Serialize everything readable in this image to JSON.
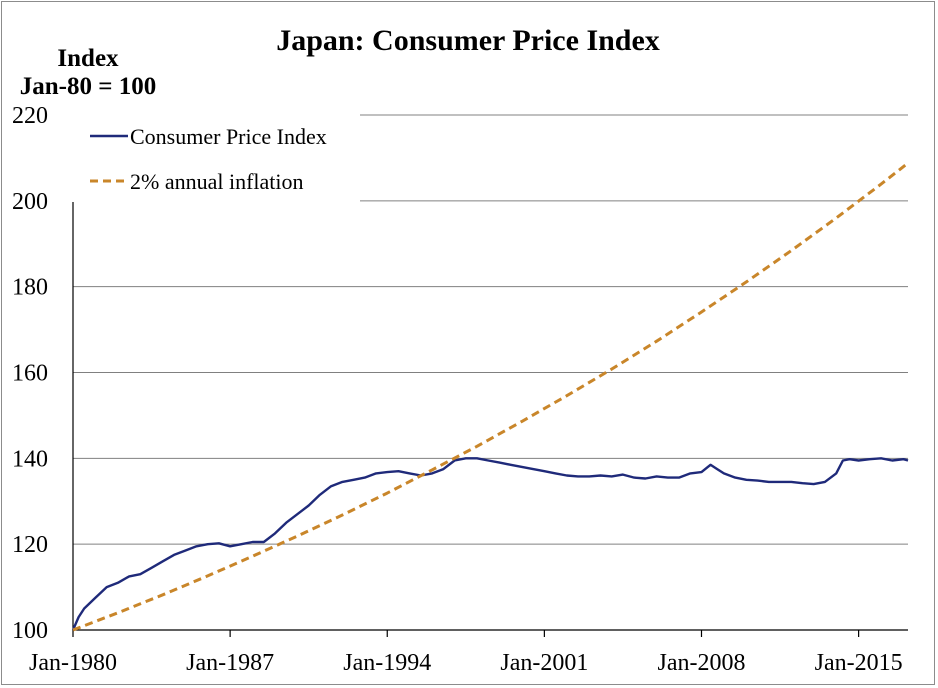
{
  "chart_data": {
    "type": "line",
    "title": "Japan: Consumer Price Index",
    "ylabel_line1": "Index",
    "ylabel_line2": "Jan-80 = 100",
    "xlabel": "",
    "ylim": [
      100,
      220
    ],
    "yticks": [
      100,
      120,
      140,
      160,
      180,
      200,
      220
    ],
    "xlim": [
      1980.0,
      2017.2
    ],
    "xticks": [
      {
        "x": 1980,
        "label": "Jan-1980"
      },
      {
        "x": 1987,
        "label": "Jan-1987"
      },
      {
        "x": 1994,
        "label": "Jan-1994"
      },
      {
        "x": 2001,
        "label": "Jan-2001"
      },
      {
        "x": 2008,
        "label": "Jan-2008"
      },
      {
        "x": 2015,
        "label": "Jan-2015"
      }
    ],
    "grid": true,
    "legend_position": "top-left",
    "series": [
      {
        "name": "Consumer Price Index",
        "color": "#1f2a7a",
        "style": "solid",
        "x": [
          1980.0,
          1980.25,
          1980.5,
          1981.0,
          1981.5,
          1982.0,
          1982.5,
          1983.0,
          1983.5,
          1984.0,
          1984.5,
          1985.0,
          1985.5,
          1986.0,
          1986.5,
          1987.0,
          1987.5,
          1988.0,
          1988.5,
          1989.0,
          1989.5,
          1990.0,
          1990.5,
          1991.0,
          1991.5,
          1992.0,
          1992.5,
          1993.0,
          1993.5,
          1994.0,
          1994.5,
          1995.0,
          1995.5,
          1996.0,
          1996.5,
          1997.0,
          1997.5,
          1998.0,
          1998.5,
          1999.0,
          1999.5,
          2000.0,
          2000.5,
          2001.0,
          2001.5,
          2002.0,
          2002.5,
          2003.0,
          2003.5,
          2004.0,
          2004.5,
          2005.0,
          2005.5,
          2006.0,
          2006.5,
          2007.0,
          2007.5,
          2008.0,
          2008.4,
          2008.7,
          2009.0,
          2009.5,
          2010.0,
          2010.5,
          2011.0,
          2011.5,
          2012.0,
          2012.5,
          2013.0,
          2013.5,
          2014.0,
          2014.3,
          2014.6,
          2015.0,
          2015.5,
          2016.0,
          2016.5,
          2017.0,
          2017.2
        ],
        "values": [
          100.0,
          103.0,
          105.0,
          107.5,
          110.0,
          111.0,
          112.5,
          113.0,
          114.5,
          116.0,
          117.5,
          118.5,
          119.5,
          120.0,
          120.2,
          119.5,
          120.0,
          120.5,
          120.5,
          122.5,
          125.0,
          127.0,
          129.0,
          131.5,
          133.5,
          134.5,
          135.0,
          135.5,
          136.5,
          136.8,
          137.0,
          136.5,
          136.0,
          136.5,
          137.5,
          139.5,
          140.0,
          140.0,
          139.5,
          139.0,
          138.5,
          138.0,
          137.5,
          137.0,
          136.5,
          136.0,
          135.8,
          135.8,
          136.0,
          135.8,
          136.2,
          135.5,
          135.3,
          135.8,
          135.5,
          135.5,
          136.5,
          136.8,
          138.5,
          137.5,
          136.5,
          135.5,
          135.0,
          134.8,
          134.5,
          134.5,
          134.5,
          134.2,
          134.0,
          134.5,
          136.5,
          139.5,
          139.8,
          139.5,
          139.8,
          140.0,
          139.5,
          139.8,
          139.5
        ]
      },
      {
        "name": "2% annual inflation",
        "color": "#c9862a",
        "style": "dashed",
        "x": [
          1980,
          1982,
          1984,
          1986,
          1988,
          1990,
          1992,
          1994,
          1996,
          1998,
          2000,
          2002,
          2004,
          2006,
          2008,
          2010,
          2012,
          2014,
          2016,
          2017.2
        ],
        "values": [
          100.0,
          104.0,
          108.2,
          112.6,
          117.2,
          121.9,
          126.8,
          131.9,
          137.3,
          142.8,
          148.6,
          154.6,
          160.8,
          167.3,
          174.1,
          181.1,
          188.4,
          196.0,
          203.9,
          208.8
        ]
      }
    ]
  }
}
